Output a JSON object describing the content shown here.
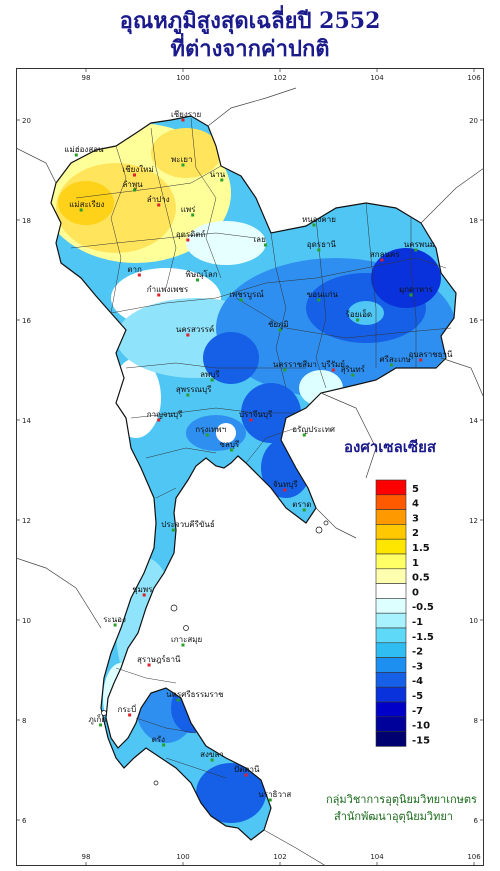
{
  "title": {
    "line1": "อุณหภูมิสูงสุดเฉลี่ยปี  2552",
    "line2": "ที่ต่างจากค่าปกติ"
  },
  "axes": {
    "longitude_ticks": [
      "98",
      "100",
      "102",
      "104",
      "106"
    ],
    "latitude_ticks": [
      "20",
      "18",
      "16",
      "14",
      "12",
      "10",
      "8",
      "6"
    ]
  },
  "legend": {
    "title": "องศาเซลเซียส",
    "items": [
      {
        "label": "5",
        "color": "#ff0000"
      },
      {
        "label": "4",
        "color": "#ff5a00"
      },
      {
        "label": "3",
        "color": "#ff9900"
      },
      {
        "label": "2",
        "color": "#ffc800"
      },
      {
        "label": "1.5",
        "color": "#ffe600"
      },
      {
        "label": "1",
        "color": "#ffff66"
      },
      {
        "label": "0.5",
        "color": "#ffffb0"
      },
      {
        "label": "0",
        "color": "#ffffff"
      },
      {
        "label": "-0.5",
        "color": "#ddffff"
      },
      {
        "label": "-1",
        "color": "#a8f2ff"
      },
      {
        "label": "-1.5",
        "color": "#5ed9f7"
      },
      {
        "label": "-2",
        "color": "#30bdf2"
      },
      {
        "label": "-3",
        "color": "#1d8ff0"
      },
      {
        "label": "-4",
        "color": "#1560e6"
      },
      {
        "label": "-5",
        "color": "#0a32dc"
      },
      {
        "label": "-7",
        "color": "#0000c8"
      },
      {
        "label": "-10",
        "color": "#00009a"
      },
      {
        "label": "-15",
        "color": "#000070"
      }
    ]
  },
  "credits": {
    "line1": "กลุ่มวิชาการอุตุนิยมวิทยาเกษตร",
    "line2": "สำนักพัฒนาอุตุนิยมวิทยา"
  },
  "places": [
    {
      "name": "เชียงราย",
      "lon": 100.0,
      "lat": 20.0
    },
    {
      "name": "แม่ฮ่องสอน",
      "lon": 97.8,
      "lat": 19.3
    },
    {
      "name": "พะเยา",
      "lon": 100.0,
      "lat": 19.1
    },
    {
      "name": "เชียงใหม่",
      "lon": 99.0,
      "lat": 18.9
    },
    {
      "name": "ลำพูน",
      "lon": 99.0,
      "lat": 18.6
    },
    {
      "name": "น่าน",
      "lon": 100.8,
      "lat": 18.8
    },
    {
      "name": "ลำปาง",
      "lon": 99.5,
      "lat": 18.3
    },
    {
      "name": "แพร่",
      "lon": 100.2,
      "lat": 18.1
    },
    {
      "name": "แม่สะเรียง",
      "lon": 97.9,
      "lat": 18.2
    },
    {
      "name": "อุตรดิตถ์",
      "lon": 100.1,
      "lat": 17.6
    },
    {
      "name": "หนองคาย",
      "lon": 102.7,
      "lat": 17.9
    },
    {
      "name": "อุดรธานี",
      "lon": 102.8,
      "lat": 17.4
    },
    {
      "name": "สกลนคร",
      "lon": 104.1,
      "lat": 17.2
    },
    {
      "name": "นครพนม",
      "lon": 104.8,
      "lat": 17.4
    },
    {
      "name": "เลย",
      "lon": 101.7,
      "lat": 17.5
    },
    {
      "name": "ตาก",
      "lon": 99.1,
      "lat": 16.9
    },
    {
      "name": "พิษณุโลก",
      "lon": 100.3,
      "lat": 16.8
    },
    {
      "name": "ขอนแก่น",
      "lon": 102.8,
      "lat": 16.4
    },
    {
      "name": "กำแพงเพชร",
      "lon": 99.5,
      "lat": 16.5
    },
    {
      "name": "เพชรบูรณ์",
      "lon": 101.2,
      "lat": 16.4
    },
    {
      "name": "มุกดาหาร",
      "lon": 104.7,
      "lat": 16.5
    },
    {
      "name": "นครสวรรค์",
      "lon": 100.1,
      "lat": 15.7
    },
    {
      "name": "ชัยภูมิ",
      "lon": 102.0,
      "lat": 15.8
    },
    {
      "name": "ร้อยเอ็ด",
      "lon": 103.6,
      "lat": 16.0
    },
    {
      "name": "อุบลราชธานี",
      "lon": 104.9,
      "lat": 15.2
    },
    {
      "name": "ลพบุรี",
      "lon": 100.6,
      "lat": 14.8
    },
    {
      "name": "นครราชสีมา",
      "lon": 102.1,
      "lat": 15.0
    },
    {
      "name": "บุรีรัมย์",
      "lon": 103.1,
      "lat": 15.0
    },
    {
      "name": "สุรินทร์",
      "lon": 103.5,
      "lat": 14.9
    },
    {
      "name": "ศรีสะเกษ",
      "lon": 104.3,
      "lat": 15.1
    },
    {
      "name": "กาญจนบุรี",
      "lon": 99.5,
      "lat": 14.0
    },
    {
      "name": "สุพรรณบุรี",
      "lon": 100.1,
      "lat": 14.5
    },
    {
      "name": "กรุงเทพฯ",
      "lon": 100.5,
      "lat": 13.7
    },
    {
      "name": "ปราจีนบุรี",
      "lon": 101.4,
      "lat": 14.0
    },
    {
      "name": "อรัญประเทศ",
      "lon": 102.5,
      "lat": 13.7
    },
    {
      "name": "ชลบุรี",
      "lon": 101.0,
      "lat": 13.4
    },
    {
      "name": "จันทบุรี",
      "lon": 102.1,
      "lat": 12.6
    },
    {
      "name": "ตราด",
      "lon": 102.5,
      "lat": 12.2
    },
    {
      "name": "ประจวบคีรีขันธ์",
      "lon": 99.8,
      "lat": 11.8
    },
    {
      "name": "ชุมพร",
      "lon": 99.2,
      "lat": 10.5
    },
    {
      "name": "ระนอง",
      "lon": 98.6,
      "lat": 9.9
    },
    {
      "name": "เกาะสมุย",
      "lon": 100.0,
      "lat": 9.5
    },
    {
      "name": "สุราษฎร์ธานี",
      "lon": 99.3,
      "lat": 9.1
    },
    {
      "name": "ภูเก็ต",
      "lon": 98.3,
      "lat": 7.9
    },
    {
      "name": "นครศรีธรรมราช",
      "lon": 99.9,
      "lat": 8.4
    },
    {
      "name": "กระบี่",
      "lon": 98.9,
      "lat": 8.1
    },
    {
      "name": "ตรัง",
      "lon": 99.6,
      "lat": 7.5
    },
    {
      "name": "สงขลา",
      "lon": 100.6,
      "lat": 7.2
    },
    {
      "name": "ปัตตานี",
      "lon": 101.3,
      "lat": 6.9
    },
    {
      "name": "นราธิวาส",
      "lon": 101.8,
      "lat": 6.4
    }
  ]
}
